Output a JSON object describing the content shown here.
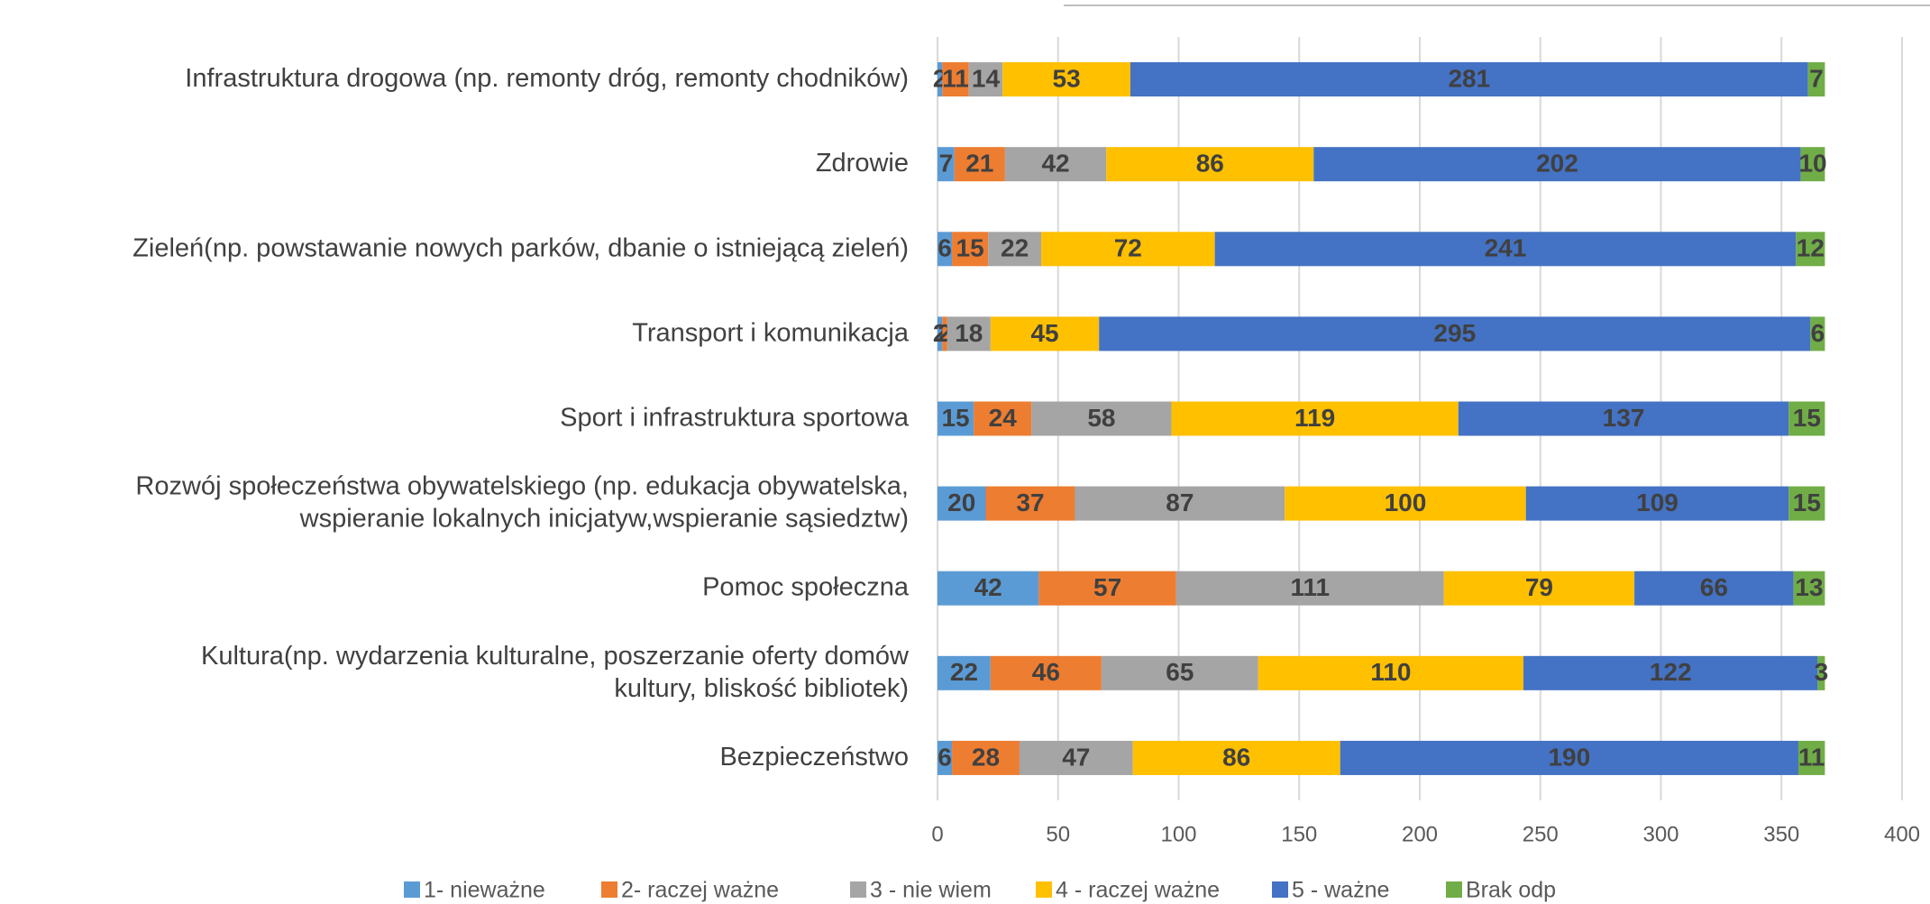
{
  "chart_data": {
    "type": "stacked-barh",
    "categories": [
      "Infrastruktura drogowa (np. remonty dróg, remonty chodników)",
      "Zdrowie",
      "Zieleń(np. powstawanie nowych parków, dbanie o istniejącą zieleń)",
      "Transport i komunikacja",
      "Sport i infrastruktura sportowa",
      "Rozwój społeczeństwa obywatelskiego (np. edukacja obywatelska,\nwspieranie lokalnych inicjatyw,wspieranie sąsiedztw)",
      "Pomoc społeczna",
      "Kultura(np. wydarzenia kulturalne, poszerzanie oferty domów\nkultury, bliskość bibliotek)",
      "Bezpieczeństwo"
    ],
    "series": [
      {
        "name": "1- nieważne",
        "color": "#5b9bd5",
        "values": [
          2,
          7,
          6,
          2,
          15,
          20,
          42,
          22,
          6
        ]
      },
      {
        "name": "2- raczej ważne",
        "color": "#ed7d31",
        "values": [
          11,
          21,
          15,
          2,
          24,
          37,
          57,
          46,
          28
        ]
      },
      {
        "name": "3 - nie wiem",
        "color": "#a5a5a5",
        "values": [
          14,
          42,
          22,
          18,
          58,
          87,
          111,
          65,
          47
        ]
      },
      {
        "name": "4 - raczej ważne",
        "color": "#ffc000",
        "values": [
          53,
          86,
          72,
          45,
          119,
          100,
          79,
          110,
          86
        ]
      },
      {
        "name": "5 - ważne",
        "color": "#4472c4",
        "values": [
          281,
          202,
          241,
          295,
          137,
          109,
          66,
          122,
          190
        ]
      },
      {
        "name": "Brak odp",
        "color": "#70ad47",
        "values": [
          7,
          10,
          12,
          6,
          15,
          15,
          13,
          3,
          11
        ]
      }
    ],
    "xlim": [
      0,
      400
    ],
    "xticks": [
      0,
      50,
      100,
      150,
      200,
      250,
      300,
      350,
      400
    ],
    "grid": true,
    "legend": "bottom"
  }
}
